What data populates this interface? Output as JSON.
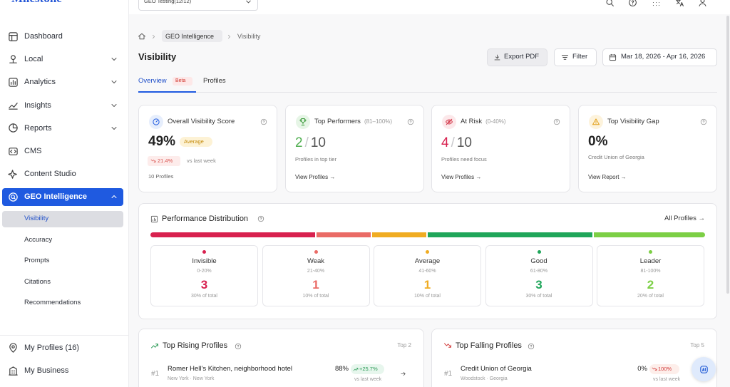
{
  "topbar": {
    "logo": "Milestone",
    "workspace": "GEO Testing(12/12)"
  },
  "sidebar": {
    "nav": [
      "Dashboard",
      "Local",
      "Analytics",
      "Insights",
      "Reports",
      "CMS",
      "Content Studio"
    ],
    "active": "GEO Intelligence",
    "subnav": [
      "Visibility",
      "Accuracy",
      "Prompts",
      "Citations",
      "Recommendations"
    ],
    "footer": [
      "My Profiles (16)",
      "My Business"
    ]
  },
  "breadcrumb": [
    "GEO Intelligence",
    "Visibility"
  ],
  "page": {
    "title": "Visibility",
    "actions": [
      "Export PDF",
      "Filter",
      "Mar 18, 2026 - Apr 16, 2026"
    ],
    "tabs": [
      "Overview",
      "Profiles"
    ],
    "tab_badge": "Beta"
  },
  "cards": [
    {
      "title": "Overall Visibility Score",
      "value": "49%",
      "badge": "Average",
      "change": "21.4%",
      "change_note": "vs last week",
      "footer": "10 Profiles"
    },
    {
      "title": "Top Performers",
      "range": "(81–100%)",
      "value": "2",
      "separator": "/",
      "total": "10",
      "note": "Profiles in top tier",
      "link": "View Profiles →"
    },
    {
      "title": "At Risk",
      "range": "(0-40%)",
      "value": "4",
      "separator": "/",
      "total": "10",
      "note": "Profiles need focus",
      "link": "View Profiles →"
    },
    {
      "title": "Top Visibility Gap",
      "value": "0%",
      "note": "Credit Union of Georgia",
      "link": "View Report →"
    }
  ],
  "distribution": {
    "title": "Performance Distribution",
    "link": "All Profiles →",
    "tiers": [
      {
        "name": "Invisible",
        "range": "0-20%",
        "count": 3,
        "share": "30% of total",
        "color": "#d8214f"
      },
      {
        "name": "Weak",
        "range": "21-40%",
        "count": 1,
        "share": "10% of total",
        "color": "#ea6b66"
      },
      {
        "name": "Average",
        "range": "41-60%",
        "count": 1,
        "share": "10% of total",
        "color": "#f0ac22"
      },
      {
        "name": "Good",
        "range": "61-80%",
        "count": 3,
        "share": "30% of total",
        "color": "#1fa65a"
      },
      {
        "name": "Leader",
        "range": "81-100%",
        "count": 2,
        "share": "20% of total",
        "color": "#7ccf45"
      }
    ]
  },
  "rising": {
    "title": "Top Rising Profiles",
    "limit": "Top 2",
    "rows": [
      {
        "rank": "#1",
        "name": "Romer Hell's Kitchen, neighborhood hotel",
        "location": "New York · New York",
        "score": "88%",
        "change": "+25.7%",
        "note": "vs last week"
      }
    ]
  },
  "falling": {
    "title": "Top Falling Profiles",
    "limit": "Top 5",
    "rows": [
      {
        "rank": "#1",
        "name": "Credit Union of Georgia",
        "location": "Woodstock · Georgia",
        "score": "0%",
        "change": "100%",
        "note": "vs last week"
      }
    ]
  }
}
